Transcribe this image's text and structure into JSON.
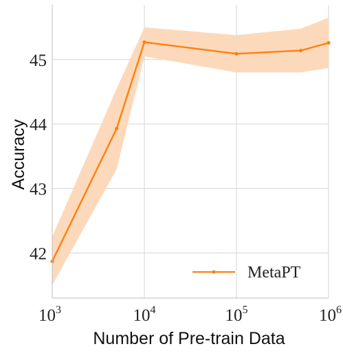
{
  "chart_data": {
    "type": "line",
    "xlabel": "Number of Pre-train Data",
    "ylabel": "Accuracy",
    "x_scale": "log",
    "xlim": [
      1000,
      1000000
    ],
    "ylim": [
      41.3,
      45.85
    ],
    "x_ticks": [
      {
        "value": 1000,
        "base": "10",
        "exp": "3"
      },
      {
        "value": 10000,
        "base": "10",
        "exp": "4"
      },
      {
        "value": 100000,
        "base": "10",
        "exp": "5"
      },
      {
        "value": 1000000,
        "base": "10",
        "exp": "6"
      }
    ],
    "y_ticks": [
      42,
      43,
      44,
      45
    ],
    "grid": true,
    "legend_position": "lower-right",
    "series": [
      {
        "name": "MetaPT",
        "color": "#ff7f0e",
        "band_color": "#fdd9bb",
        "x": [
          1000,
          5000,
          10000,
          100000,
          500000,
          1000000
        ],
        "y": [
          41.87,
          43.93,
          45.27,
          45.09,
          45.14,
          45.26
        ],
        "lower": [
          41.5,
          43.3,
          45.05,
          44.8,
          44.8,
          44.87
        ],
        "upper": [
          42.25,
          44.55,
          45.5,
          45.38,
          45.48,
          45.65
        ]
      }
    ]
  }
}
